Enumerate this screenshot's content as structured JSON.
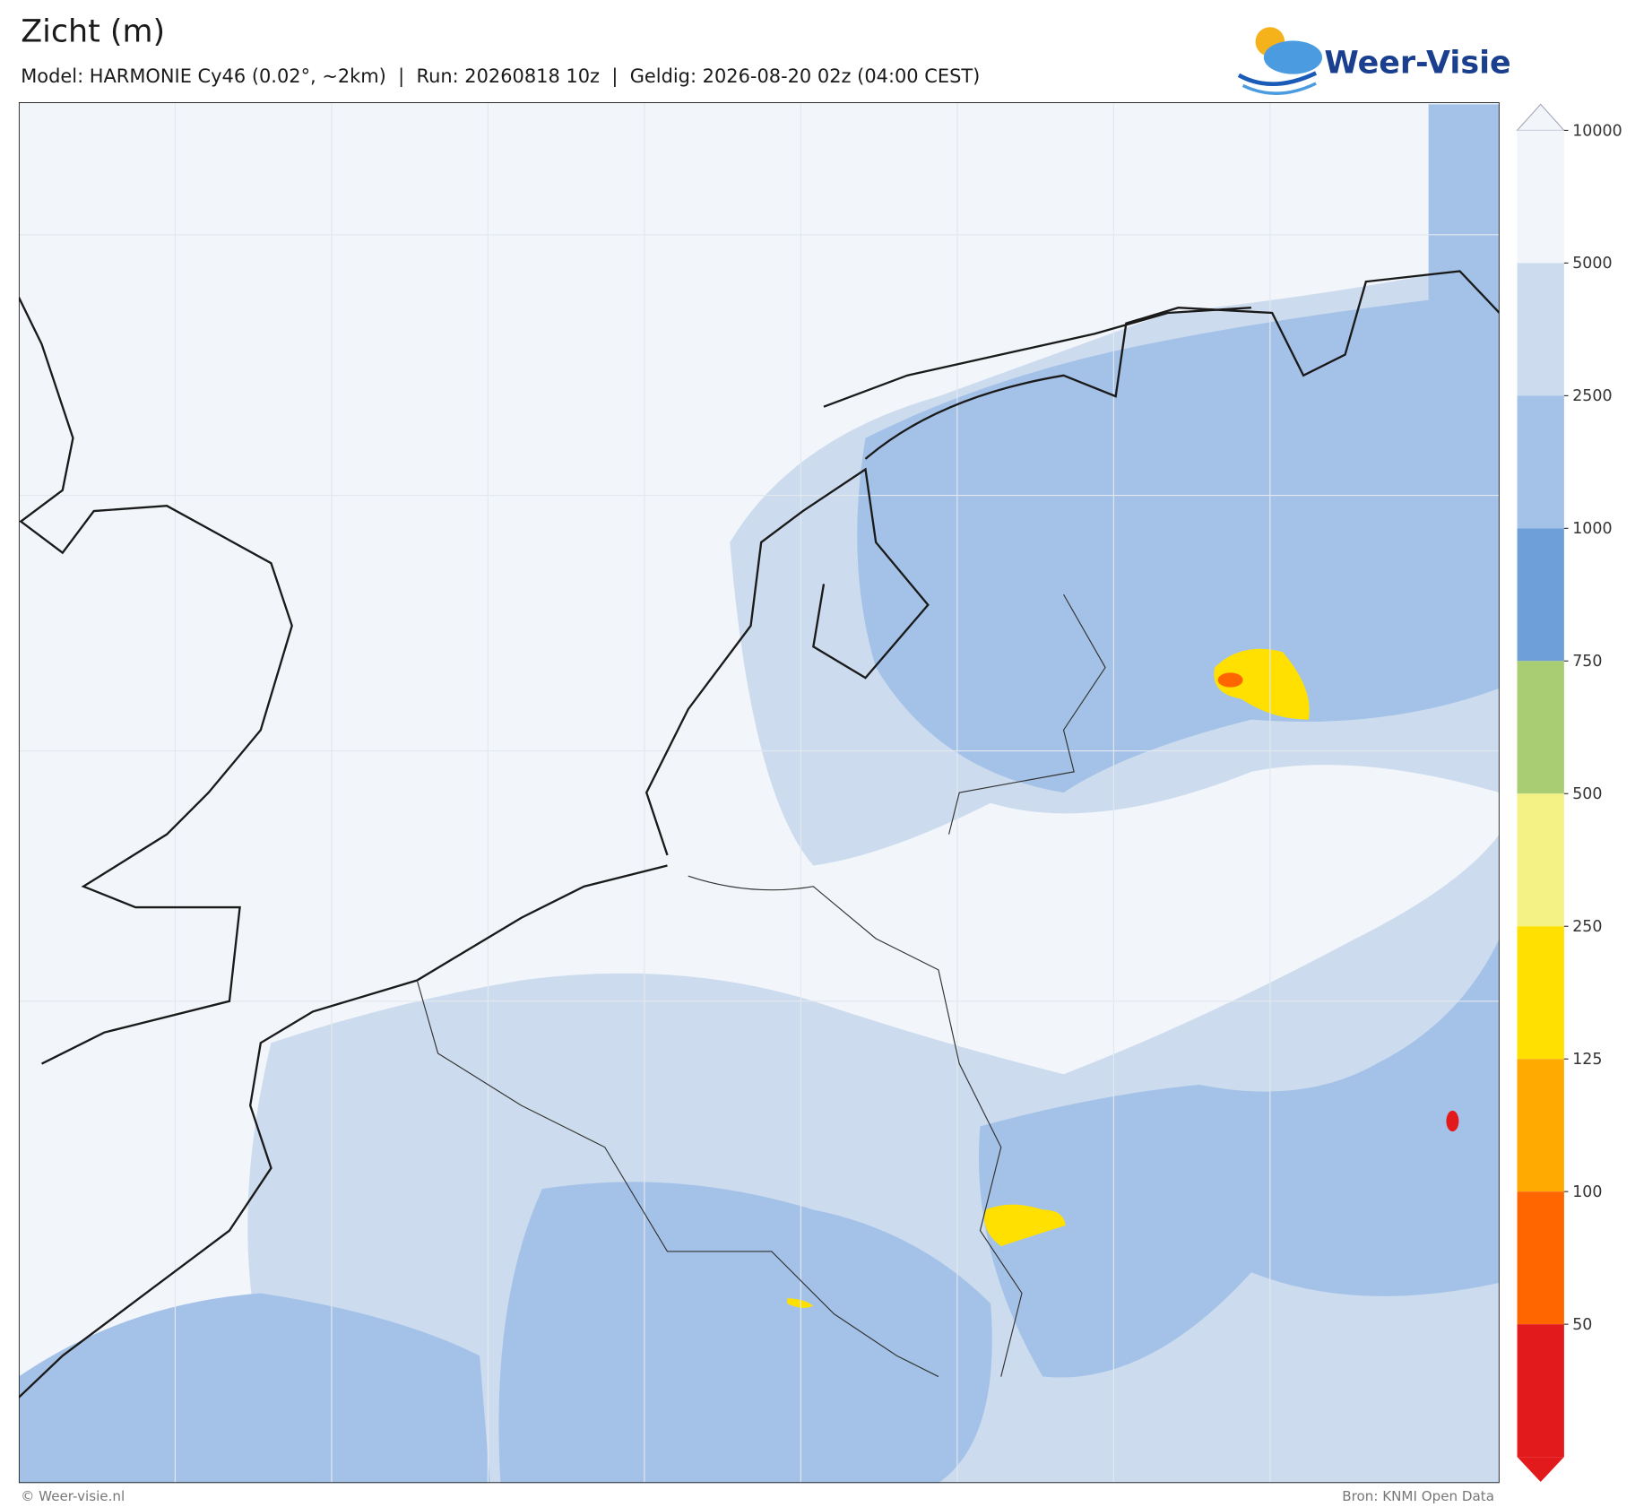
{
  "header": {
    "title": "Zicht (m)",
    "subtitle": "Model: HARMONIE Cy46 (0.02°, ~2km)  |  Run: 20260818 10z  |  Geldig: 2026-08-20 02z (04:00 CEST)",
    "logo": "Weer-Visie"
  },
  "colorbar": {
    "ticks": [
      10000,
      5000,
      2500,
      1000,
      750,
      500,
      250,
      125,
      100,
      50
    ],
    "colors": [
      "#f2f5fa",
      "#ccdcee",
      "#a4c2e8",
      "#6e9fd8",
      "#a9cd72",
      "#f5f285",
      "#ffe000",
      "#ffaa00",
      "#ff6600",
      "#e31a1c"
    ]
  },
  "footer": {
    "left": "© Weer-visie.nl",
    "right": "Bron: KNMI Open Data"
  }
}
